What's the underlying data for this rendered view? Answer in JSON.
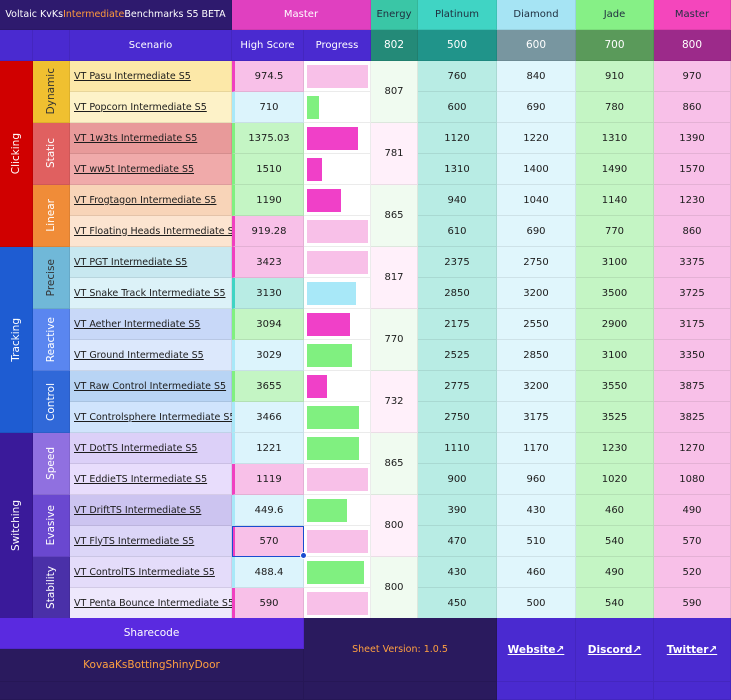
{
  "title": {
    "prefix": "Voltaic KvKs ",
    "accent": "Intermediate",
    "suffix": " Benchmarks S5 BETA"
  },
  "current_rank": "Master",
  "header": {
    "scenario": "Scenario",
    "high_score": "High Score",
    "progress": "Progress"
  },
  "ranks": [
    {
      "name": "Energy",
      "points": "802",
      "color": "#3ac6a6"
    },
    {
      "name": "Platinum",
      "points": "500",
      "color": "#40d4c4"
    },
    {
      "name": "Diamond",
      "points": "600",
      "color": "#a6e4f4"
    },
    {
      "name": "Jade",
      "points": "700",
      "color": "#86f086"
    },
    {
      "name": "Master",
      "points": "800",
      "color": "#f446bc"
    }
  ],
  "categories": [
    {
      "name": "Clicking",
      "color": "#d00000"
    },
    {
      "name": "Tracking",
      "color": "#1e5cd2"
    },
    {
      "name": "Switching",
      "color": "#3a1a9a"
    }
  ],
  "subcategories": [
    {
      "name": "Dynamic",
      "energy": "807"
    },
    {
      "name": "Static",
      "energy": "781"
    },
    {
      "name": "Linear",
      "energy": "865"
    },
    {
      "name": "Precise",
      "energy": "817"
    },
    {
      "name": "Reactive",
      "energy": "770"
    },
    {
      "name": "Control",
      "energy": "732"
    },
    {
      "name": "Speed",
      "energy": "865"
    },
    {
      "name": "Evasive",
      "energy": "800"
    },
    {
      "name": "Stability",
      "energy": "800"
    }
  ],
  "rows": [
    {
      "scenario": "VT Pasu Intermediate S5",
      "score": "974.5",
      "progress": 1.0,
      "thresholds": [
        "760",
        "840",
        "910",
        "970"
      ]
    },
    {
      "scenario": "VT Popcorn Intermediate S5",
      "score": "710",
      "progress": 0.2,
      "thresholds": [
        "600",
        "690",
        "780",
        "860"
      ]
    },
    {
      "scenario": "VT 1w3ts Intermediate S5",
      "score": "1375.03",
      "progress": 0.83,
      "thresholds": [
        "1120",
        "1220",
        "1310",
        "1390"
      ]
    },
    {
      "scenario": "VT ww5t Intermediate S5",
      "score": "1510",
      "progress": 0.25,
      "thresholds": [
        "1310",
        "1400",
        "1490",
        "1570"
      ]
    },
    {
      "scenario": "VT Frogtagon Intermediate S5",
      "score": "1190",
      "progress": 0.56,
      "thresholds": [
        "940",
        "1040",
        "1140",
        "1230"
      ]
    },
    {
      "scenario": "VT Floating Heads Intermediate S5",
      "score": "919.28",
      "progress": 1.0,
      "thresholds": [
        "610",
        "690",
        "770",
        "860"
      ]
    },
    {
      "scenario": "VT PGT Intermediate S5",
      "score": "3423",
      "progress": 1.0,
      "thresholds": [
        "2375",
        "2750",
        "3100",
        "3375"
      ]
    },
    {
      "scenario": "VT Snake Track Intermediate S5",
      "score": "3130",
      "progress": 0.8,
      "thresholds": [
        "2850",
        "3200",
        "3500",
        "3725"
      ]
    },
    {
      "scenario": "VT Aether Intermediate S5",
      "score": "3094",
      "progress": 0.71,
      "thresholds": [
        "2175",
        "2550",
        "2900",
        "3175"
      ]
    },
    {
      "scenario": "VT Ground Intermediate S5",
      "score": "3029",
      "progress": 0.74,
      "thresholds": [
        "2525",
        "2850",
        "3100",
        "3350"
      ]
    },
    {
      "scenario": "VT Raw Control Intermediate S5",
      "score": "3655",
      "progress": 0.33,
      "thresholds": [
        "2775",
        "3200",
        "3550",
        "3875"
      ]
    },
    {
      "scenario": "VT Controlsphere Intermediate S5",
      "score": "3466",
      "progress": 0.85,
      "thresholds": [
        "2750",
        "3175",
        "3525",
        "3825"
      ]
    },
    {
      "scenario": "VT DotTS Intermediate S5",
      "score": "1221",
      "progress": 0.85,
      "thresholds": [
        "1110",
        "1170",
        "1230",
        "1270"
      ]
    },
    {
      "scenario": "VT EddieTS Intermediate S5",
      "score": "1119",
      "progress": 1.0,
      "thresholds": [
        "900",
        "960",
        "1020",
        "1080"
      ]
    },
    {
      "scenario": "VT DriftTS Intermediate S5",
      "score": "449.6",
      "progress": 0.66,
      "thresholds": [
        "390",
        "430",
        "460",
        "490"
      ]
    },
    {
      "scenario": "VT FlyTS Intermediate S5",
      "score": "570",
      "progress": 1.0,
      "thresholds": [
        "470",
        "510",
        "540",
        "570"
      ]
    },
    {
      "scenario": "VT ControlTS Intermediate S5",
      "score": "488.4",
      "progress": 0.93,
      "thresholds": [
        "430",
        "460",
        "490",
        "520"
      ]
    },
    {
      "scenario": "VT Penta Bounce Intermediate S5",
      "score": "590",
      "progress": 1.0,
      "thresholds": [
        "450",
        "500",
        "540",
        "590"
      ]
    }
  ],
  "footer": {
    "sharecode_label": "Sharecode",
    "sharecode": "KovaaKsBottingShinyDoor",
    "version": "Sheet Version: 1.0.5",
    "links": [
      "Website↗",
      "Discord↗",
      "Twitter↗"
    ]
  }
}
